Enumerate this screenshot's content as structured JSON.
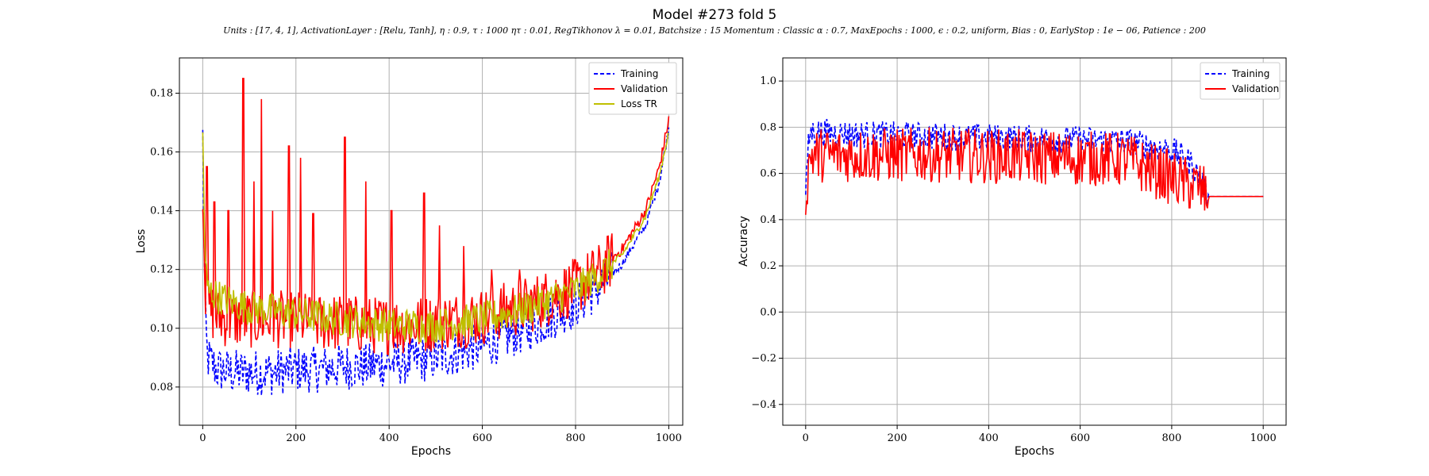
{
  "figure": {
    "title": "Model #273 fold 5",
    "subtitle": "Units : [17, 4, 1], ActivationLayer : [Relu, Tanh], η : 0.9, τ : 1000 ητ : 0.01, RegTikhonov λ = 0.01, Batchsize : 15 Momentum : Classic α : 0.7, MaxEpochs : 1000, ϵ : 0.2, uniform, Bias : 0, EarlyStop : 1e − 06, Patience : 200"
  },
  "chart_data": [
    {
      "type": "line",
      "title": "",
      "xlabel": "Epochs",
      "ylabel": "Loss",
      "xlim": [
        -50,
        1030
      ],
      "ylim": [
        0.067,
        0.192
      ],
      "xticks": [
        0,
        200,
        400,
        600,
        800,
        1000
      ],
      "yticks": [
        0.08,
        0.1,
        0.12,
        0.14,
        0.16,
        0.18
      ],
      "grid": true,
      "legend_position": "top-right",
      "series": [
        {
          "name": "Training",
          "color": "#0000ff",
          "dash": "dashed",
          "x": [
            0,
            5,
            10,
            30,
            60,
            100,
            150,
            200,
            250,
            300,
            350,
            400,
            450,
            500,
            550,
            600,
            650,
            700,
            750,
            800,
            850,
            900,
            950,
            980,
            1000
          ],
          "y": [
            0.165,
            0.105,
            0.09,
            0.086,
            0.085,
            0.085,
            0.085,
            0.086,
            0.086,
            0.087,
            0.087,
            0.088,
            0.089,
            0.09,
            0.092,
            0.094,
            0.097,
            0.1,
            0.104,
            0.108,
            0.114,
            0.122,
            0.135,
            0.15,
            0.168
          ],
          "noise": 0.008
        },
        {
          "name": "Validation",
          "color": "#ff0000",
          "dash": "solid",
          "x": [
            0,
            5,
            10,
            30,
            60,
            100,
            150,
            200,
            250,
            300,
            350,
            400,
            450,
            500,
            550,
            600,
            650,
            700,
            750,
            800,
            850,
            900,
            950,
            980,
            1000
          ],
          "y": [
            0.15,
            0.115,
            0.107,
            0.104,
            0.103,
            0.103,
            0.103,
            0.103,
            0.102,
            0.102,
            0.101,
            0.101,
            0.101,
            0.102,
            0.103,
            0.104,
            0.106,
            0.108,
            0.111,
            0.114,
            0.119,
            0.127,
            0.14,
            0.155,
            0.171
          ],
          "noise": 0.01,
          "spikes": [
            [
              9,
              0.155
            ],
            [
              25,
              0.143
            ],
            [
              55,
              0.14
            ],
            [
              87,
              0.185
            ],
            [
              110,
              0.15
            ],
            [
              126,
              0.178
            ],
            [
              150,
              0.14
            ],
            [
              185,
              0.162
            ],
            [
              210,
              0.158
            ],
            [
              237,
              0.139
            ],
            [
              305,
              0.165
            ],
            [
              350,
              0.15
            ],
            [
              405,
              0.14
            ],
            [
              475,
              0.146
            ],
            [
              508,
              0.135
            ],
            [
              560,
              0.128
            ],
            [
              620,
              0.12
            ],
            [
              680,
              0.12
            ]
          ]
        },
        {
          "name": "Loss TR",
          "color": "#bfbf00",
          "dash": "solid",
          "x": [
            0,
            5,
            10,
            30,
            60,
            100,
            150,
            200,
            250,
            300,
            350,
            400,
            450,
            500,
            550,
            600,
            650,
            700,
            750,
            800,
            850,
            900,
            950,
            980,
            1000
          ],
          "y": [
            0.166,
            0.125,
            0.113,
            0.111,
            0.109,
            0.107,
            0.106,
            0.105,
            0.104,
            0.103,
            0.102,
            0.101,
            0.101,
            0.101,
            0.102,
            0.103,
            0.105,
            0.107,
            0.11,
            0.113,
            0.118,
            0.125,
            0.138,
            0.152,
            0.167
          ],
          "noise": 0.006
        }
      ]
    },
    {
      "type": "line",
      "title": "",
      "xlabel": "Epochs",
      "ylabel": "Accuracy",
      "xlim": [
        -50,
        1050
      ],
      "ylim": [
        -0.49,
        1.1
      ],
      "xticks": [
        0,
        200,
        400,
        600,
        800,
        1000
      ],
      "yticks": [
        -0.4,
        -0.2,
        0.0,
        0.2,
        0.4,
        0.6,
        0.8,
        1.0
      ],
      "grid": true,
      "legend_position": "top-right",
      "series": [
        {
          "name": "Training",
          "color": "#0000ff",
          "dash": "dashed",
          "x": [
            0,
            5,
            10,
            30,
            100,
            300,
            500,
            700,
            750,
            800,
            840,
            860,
            870,
            875,
            880,
            1000
          ],
          "y": [
            0.5,
            0.7,
            0.78,
            0.78,
            0.77,
            0.76,
            0.75,
            0.74,
            0.72,
            0.7,
            0.65,
            0.58,
            0.55,
            0.52,
            0.5,
            0.5
          ],
          "noise": 0.06
        },
        {
          "name": "Validation",
          "color": "#ff0000",
          "dash": "solid",
          "x": [
            0,
            5,
            10,
            30,
            100,
            300,
            500,
            700,
            750,
            800,
            840,
            860,
            870,
            875,
            880,
            1000
          ],
          "y": [
            0.5,
            0.6,
            0.68,
            0.68,
            0.68,
            0.68,
            0.67,
            0.66,
            0.62,
            0.58,
            0.55,
            0.54,
            0.52,
            0.5,
            0.5,
            0.5
          ],
          "noise": 0.12
        }
      ]
    }
  ]
}
